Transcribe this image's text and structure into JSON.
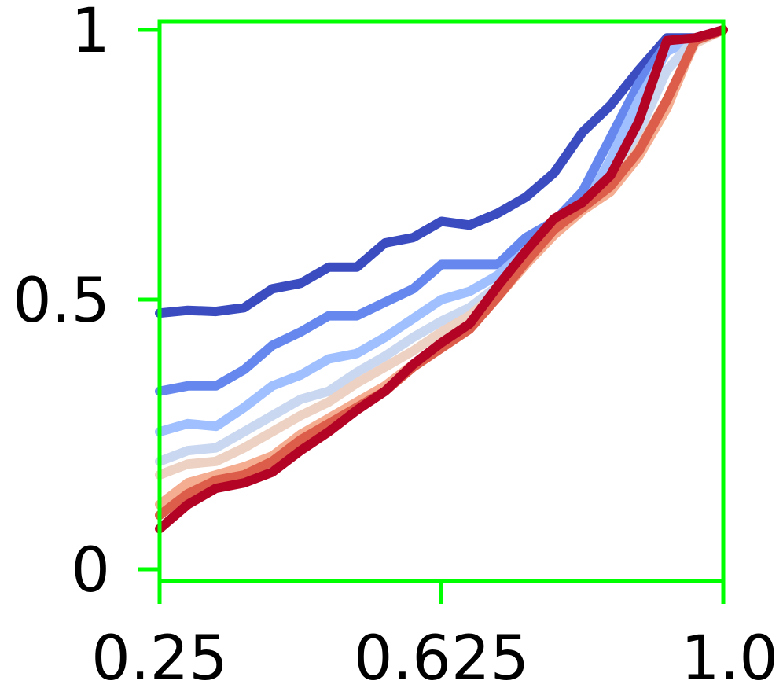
{
  "chart_data": {
    "type": "line",
    "title": "",
    "xlabel": "",
    "ylabel": "",
    "xlim": [
      0.25,
      1.0
    ],
    "ylim": [
      0,
      1
    ],
    "grid": false,
    "legend": "none",
    "axis_color": "#00ff00",
    "x_ticks": [
      {
        "value": 0.25,
        "label": "0.25"
      },
      {
        "value": 0.625,
        "label": "0.625"
      },
      {
        "value": 1.0,
        "label": "1.0"
      }
    ],
    "y_ticks": [
      {
        "value": 0,
        "label": "0"
      },
      {
        "value": 0.5,
        "label": "0.5"
      },
      {
        "value": 1,
        "label": "1"
      }
    ],
    "x": [
      0.25,
      0.2875,
      0.325,
      0.3625,
      0.4,
      0.4375,
      0.475,
      0.5125,
      0.55,
      0.5875,
      0.625,
      0.6625,
      0.7,
      0.7375,
      0.775,
      0.8125,
      0.85,
      0.8875,
      0.925,
      0.9625,
      1.0
    ],
    "series": [
      {
        "color": "#3b4cc0",
        "values": [
          0.475,
          0.48,
          0.478,
          0.485,
          0.52,
          0.53,
          0.56,
          0.56,
          0.605,
          0.615,
          0.645,
          0.638,
          0.66,
          0.69,
          0.735,
          0.81,
          0.86,
          0.925,
          0.985,
          0.985,
          1.0
        ]
      },
      {
        "color": "#6688ee",
        "values": [
          0.33,
          0.34,
          0.34,
          0.37,
          0.415,
          0.44,
          0.47,
          0.47,
          0.495,
          0.52,
          0.565,
          0.565,
          0.565,
          0.615,
          0.645,
          0.7,
          0.8,
          0.9,
          0.975,
          0.985,
          1.0
        ]
      },
      {
        "color": "#9fbfff",
        "values": [
          0.255,
          0.27,
          0.265,
          0.3,
          0.34,
          0.36,
          0.39,
          0.4,
          0.43,
          0.465,
          0.5,
          0.515,
          0.545,
          0.59,
          0.635,
          0.665,
          0.76,
          0.87,
          0.96,
          0.985,
          1.0
        ]
      },
      {
        "color": "#c9d7f0",
        "values": [
          0.2,
          0.22,
          0.225,
          0.255,
          0.285,
          0.315,
          0.33,
          0.365,
          0.395,
          0.43,
          0.46,
          0.485,
          0.525,
          0.585,
          0.63,
          0.67,
          0.725,
          0.81,
          0.925,
          0.985,
          1.0
        ]
      },
      {
        "color": "#edd1c2",
        "values": [
          0.175,
          0.195,
          0.2,
          0.225,
          0.255,
          0.285,
          0.31,
          0.345,
          0.375,
          0.405,
          0.44,
          0.47,
          0.515,
          0.575,
          0.625,
          0.665,
          0.71,
          0.78,
          0.87,
          0.975,
          1.0
        ]
      },
      {
        "color": "#f4ad91",
        "values": [
          0.12,
          0.16,
          0.175,
          0.19,
          0.21,
          0.25,
          0.28,
          0.31,
          0.34,
          0.38,
          0.415,
          0.45,
          0.505,
          0.565,
          0.62,
          0.665,
          0.7,
          0.765,
          0.855,
          0.98,
          1.0
        ]
      },
      {
        "color": "#dc5d4a",
        "values": [
          0.1,
          0.14,
          0.165,
          0.175,
          0.2,
          0.24,
          0.27,
          0.3,
          0.33,
          0.375,
          0.41,
          0.445,
          0.505,
          0.57,
          0.63,
          0.67,
          0.71,
          0.775,
          0.87,
          0.98,
          1.0
        ]
      },
      {
        "color": "#b40426",
        "values": [
          0.075,
          0.12,
          0.15,
          0.16,
          0.18,
          0.22,
          0.255,
          0.295,
          0.33,
          0.38,
          0.42,
          0.455,
          0.525,
          0.59,
          0.65,
          0.68,
          0.73,
          0.83,
          0.98,
          0.985,
          1.0
        ]
      }
    ]
  }
}
